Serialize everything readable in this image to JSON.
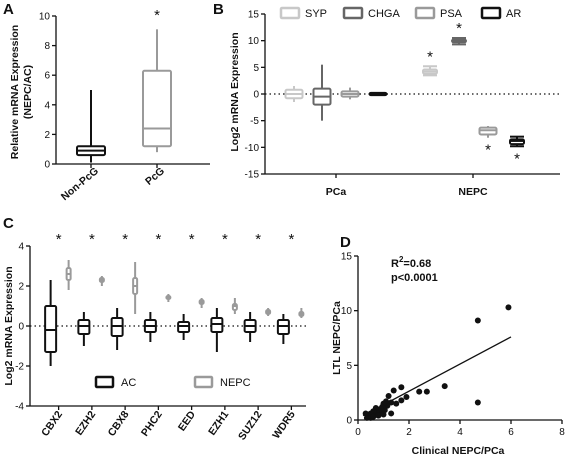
{
  "colors": {
    "black": "#111111",
    "gray_dark": "#666666",
    "gray_mid": "#8a8a8a",
    "gray_light": "#bdbdbd"
  },
  "chart_data": [
    {
      "panel": "A",
      "type": "box",
      "ylabel_lines": [
        "Relative mRNA Expression",
        "(NEPC/AC)"
      ],
      "ylim": [
        0,
        10
      ],
      "yticks": [
        0,
        2,
        4,
        6,
        8,
        10
      ],
      "categories": [
        "Non-PcG",
        "PcG"
      ],
      "boxes": [
        {
          "category": "Non-PcG",
          "min": 0.1,
          "q1": 0.6,
          "median": 0.9,
          "q3": 1.2,
          "max": 5.0,
          "color": "#111111"
        },
        {
          "category": "PcG",
          "min": 0.8,
          "q1": 1.2,
          "median": 2.4,
          "q3": 6.3,
          "max": 9.1,
          "color": "#9a9a9a"
        }
      ],
      "annotations": [
        {
          "category": "PcG",
          "text": "*"
        }
      ]
    },
    {
      "panel": "B",
      "type": "box",
      "ylabel": "Log2 mRNA Expression",
      "ylim": [
        -15,
        15
      ],
      "yticks": [
        -15,
        -10,
        -5,
        0,
        5,
        10,
        15
      ],
      "groups": [
        "PCa",
        "NEPC"
      ],
      "legend": [
        "SYP",
        "CHGA",
        "PSA",
        "AR"
      ],
      "legend_position": "top",
      "reference_line": 0,
      "series": [
        {
          "name": "SYP",
          "color": "#c8c8c8",
          "boxes": [
            {
              "group": "PCa",
              "min": -1.5,
              "q1": -0.8,
              "median": 0.0,
              "q3": 0.8,
              "max": 1.5
            },
            {
              "group": "NEPC",
              "min": 3.5,
              "q1": 3.8,
              "median": 4.2,
              "q3": 4.6,
              "max": 5.2
            }
          ]
        },
        {
          "name": "CHGA",
          "color": "#666666",
          "boxes": [
            {
              "group": "PCa",
              "min": -5.0,
              "q1": -2.0,
              "median": -0.5,
              "q3": 1.0,
              "max": 5.5
            },
            {
              "group": "NEPC",
              "min": 9.3,
              "q1": 9.7,
              "median": 10.0,
              "q3": 10.2,
              "max": 10.5
            }
          ]
        },
        {
          "name": "PSA",
          "color": "#9a9a9a",
          "boxes": [
            {
              "group": "PCa",
              "min": -1.0,
              "q1": -0.5,
              "median": 0.0,
              "q3": 0.5,
              "max": 1.2
            },
            {
              "group": "NEPC",
              "min": -8.2,
              "q1": -7.6,
              "median": -6.8,
              "q3": -6.3,
              "max": -6.0
            }
          ]
        },
        {
          "name": "AR",
          "color": "#111111",
          "boxes": [
            {
              "group": "PCa",
              "min": -0.3,
              "q1": -0.2,
              "median": 0.0,
              "q3": 0.2,
              "max": 0.3
            },
            {
              "group": "NEPC",
              "min": -9.8,
              "q1": -9.4,
              "median": -8.8,
              "q3": -8.5,
              "max": -8.0
            }
          ]
        }
      ],
      "annotations": [
        {
          "group": "NEPC",
          "series": "SYP",
          "text": "*",
          "position": "above"
        },
        {
          "group": "NEPC",
          "series": "CHGA",
          "text": "*",
          "position": "above"
        },
        {
          "group": "NEPC",
          "series": "PSA",
          "text": "*",
          "position": "below"
        },
        {
          "group": "NEPC",
          "series": "AR",
          "text": "*",
          "position": "below"
        }
      ]
    },
    {
      "panel": "C",
      "type": "box",
      "ylabel": "Log2 mRNA Expression",
      "ylim": [
        -4,
        4
      ],
      "yticks": [
        -4,
        -2,
        0,
        2,
        4
      ],
      "categories": [
        "CBX2",
        "EZH2",
        "CBX8",
        "PHC2",
        "EED",
        "EZH1",
        "SUZ12",
        "WDR5"
      ],
      "legend": [
        "AC",
        "NEPC"
      ],
      "legend_position": "bottom",
      "reference_line": 0,
      "series": [
        {
          "name": "AC",
          "color": "#111111",
          "boxes": [
            {
              "min": -2.0,
              "q1": -1.3,
              "median": -0.2,
              "q3": 1.0,
              "max": 2.3
            },
            {
              "min": -1.0,
              "q1": -0.4,
              "median": 0.0,
              "q3": 0.3,
              "max": 0.7
            },
            {
              "min": -1.2,
              "q1": -0.5,
              "median": 0.0,
              "q3": 0.4,
              "max": 0.9
            },
            {
              "min": -0.8,
              "q1": -0.3,
              "median": 0.0,
              "q3": 0.3,
              "max": 0.7
            },
            {
              "min": -0.7,
              "q1": -0.3,
              "median": 0.0,
              "q3": 0.2,
              "max": 0.6
            },
            {
              "min": -1.3,
              "q1": -0.3,
              "median": 0.1,
              "q3": 0.4,
              "max": 0.9
            },
            {
              "min": -0.8,
              "q1": -0.3,
              "median": 0.0,
              "q3": 0.3,
              "max": 0.7
            },
            {
              "min": -0.9,
              "q1": -0.4,
              "median": 0.0,
              "q3": 0.3,
              "max": 0.6
            }
          ]
        },
        {
          "name": "NEPC",
          "color": "#9a9a9a",
          "boxes": [
            {
              "min": 1.8,
              "q1": 2.3,
              "median": 2.6,
              "q3": 2.9,
              "max": 3.3
            },
            {
              "min": 2.0,
              "q1": 2.2,
              "median": 2.3,
              "q3": 2.4,
              "max": 2.5
            },
            {
              "min": 0.6,
              "q1": 1.6,
              "median": 2.0,
              "q3": 2.4,
              "max": 3.2
            },
            {
              "min": 1.2,
              "q1": 1.35,
              "median": 1.4,
              "q3": 1.5,
              "max": 1.6
            },
            {
              "min": 0.9,
              "q1": 1.1,
              "median": 1.2,
              "q3": 1.3,
              "max": 1.4
            },
            {
              "min": 0.6,
              "q1": 0.8,
              "median": 1.0,
              "q3": 1.1,
              "max": 1.4
            },
            {
              "min": 0.5,
              "q1": 0.6,
              "median": 0.7,
              "q3": 0.8,
              "max": 0.9
            },
            {
              "min": 0.4,
              "q1": 0.5,
              "median": 0.6,
              "q3": 0.7,
              "max": 0.9
            }
          ]
        }
      ],
      "annotations_text": "*"
    },
    {
      "panel": "D",
      "type": "scatter",
      "xlabel": "Clinical NEPC/PCa",
      "ylabel": "LTL NEPC/PCa",
      "xlim": [
        0,
        8
      ],
      "ylim": [
        0,
        15
      ],
      "xticks": [
        0,
        2,
        4,
        6,
        8
      ],
      "yticks": [
        0,
        5,
        10,
        15
      ],
      "annotation": {
        "r2_prefix": "R",
        "r2_sup": "2",
        "r2_value": "=0.68",
        "p": "p<0.0001"
      },
      "points": [
        [
          5.9,
          10.3
        ],
        [
          4.7,
          9.1
        ],
        [
          4.7,
          1.6
        ],
        [
          3.4,
          3.1
        ],
        [
          2.7,
          2.6
        ],
        [
          2.4,
          2.6
        ],
        [
          1.9,
          2.1
        ],
        [
          1.7,
          3.0
        ],
        [
          1.7,
          1.8
        ],
        [
          1.5,
          1.5
        ],
        [
          1.4,
          2.7
        ],
        [
          1.3,
          1.6
        ],
        [
          1.2,
          2.2
        ],
        [
          1.15,
          1.3
        ],
        [
          1.1,
          1.7
        ],
        [
          1.05,
          0.9
        ],
        [
          1.0,
          1.5
        ],
        [
          0.95,
          1.2
        ],
        [
          0.9,
          1.0
        ],
        [
          0.85,
          0.7
        ],
        [
          0.8,
          0.9
        ],
        [
          0.75,
          0.6
        ],
        [
          0.7,
          1.1
        ],
        [
          0.65,
          0.5
        ],
        [
          0.6,
          0.8
        ],
        [
          0.55,
          0.4
        ],
        [
          0.5,
          0.6
        ],
        [
          0.45,
          0.3
        ],
        [
          0.4,
          0.5
        ],
        [
          0.35,
          0.2
        ],
        [
          0.3,
          0.6
        ],
        [
          0.5,
          0.2
        ],
        [
          0.6,
          0.3
        ],
        [
          0.8,
          0.4
        ],
        [
          1.0,
          0.5
        ],
        [
          1.3,
          0.6
        ]
      ],
      "fit": {
        "x": [
          0.2,
          6.0
        ],
        "y": [
          0.4,
          7.6
        ]
      }
    }
  ]
}
